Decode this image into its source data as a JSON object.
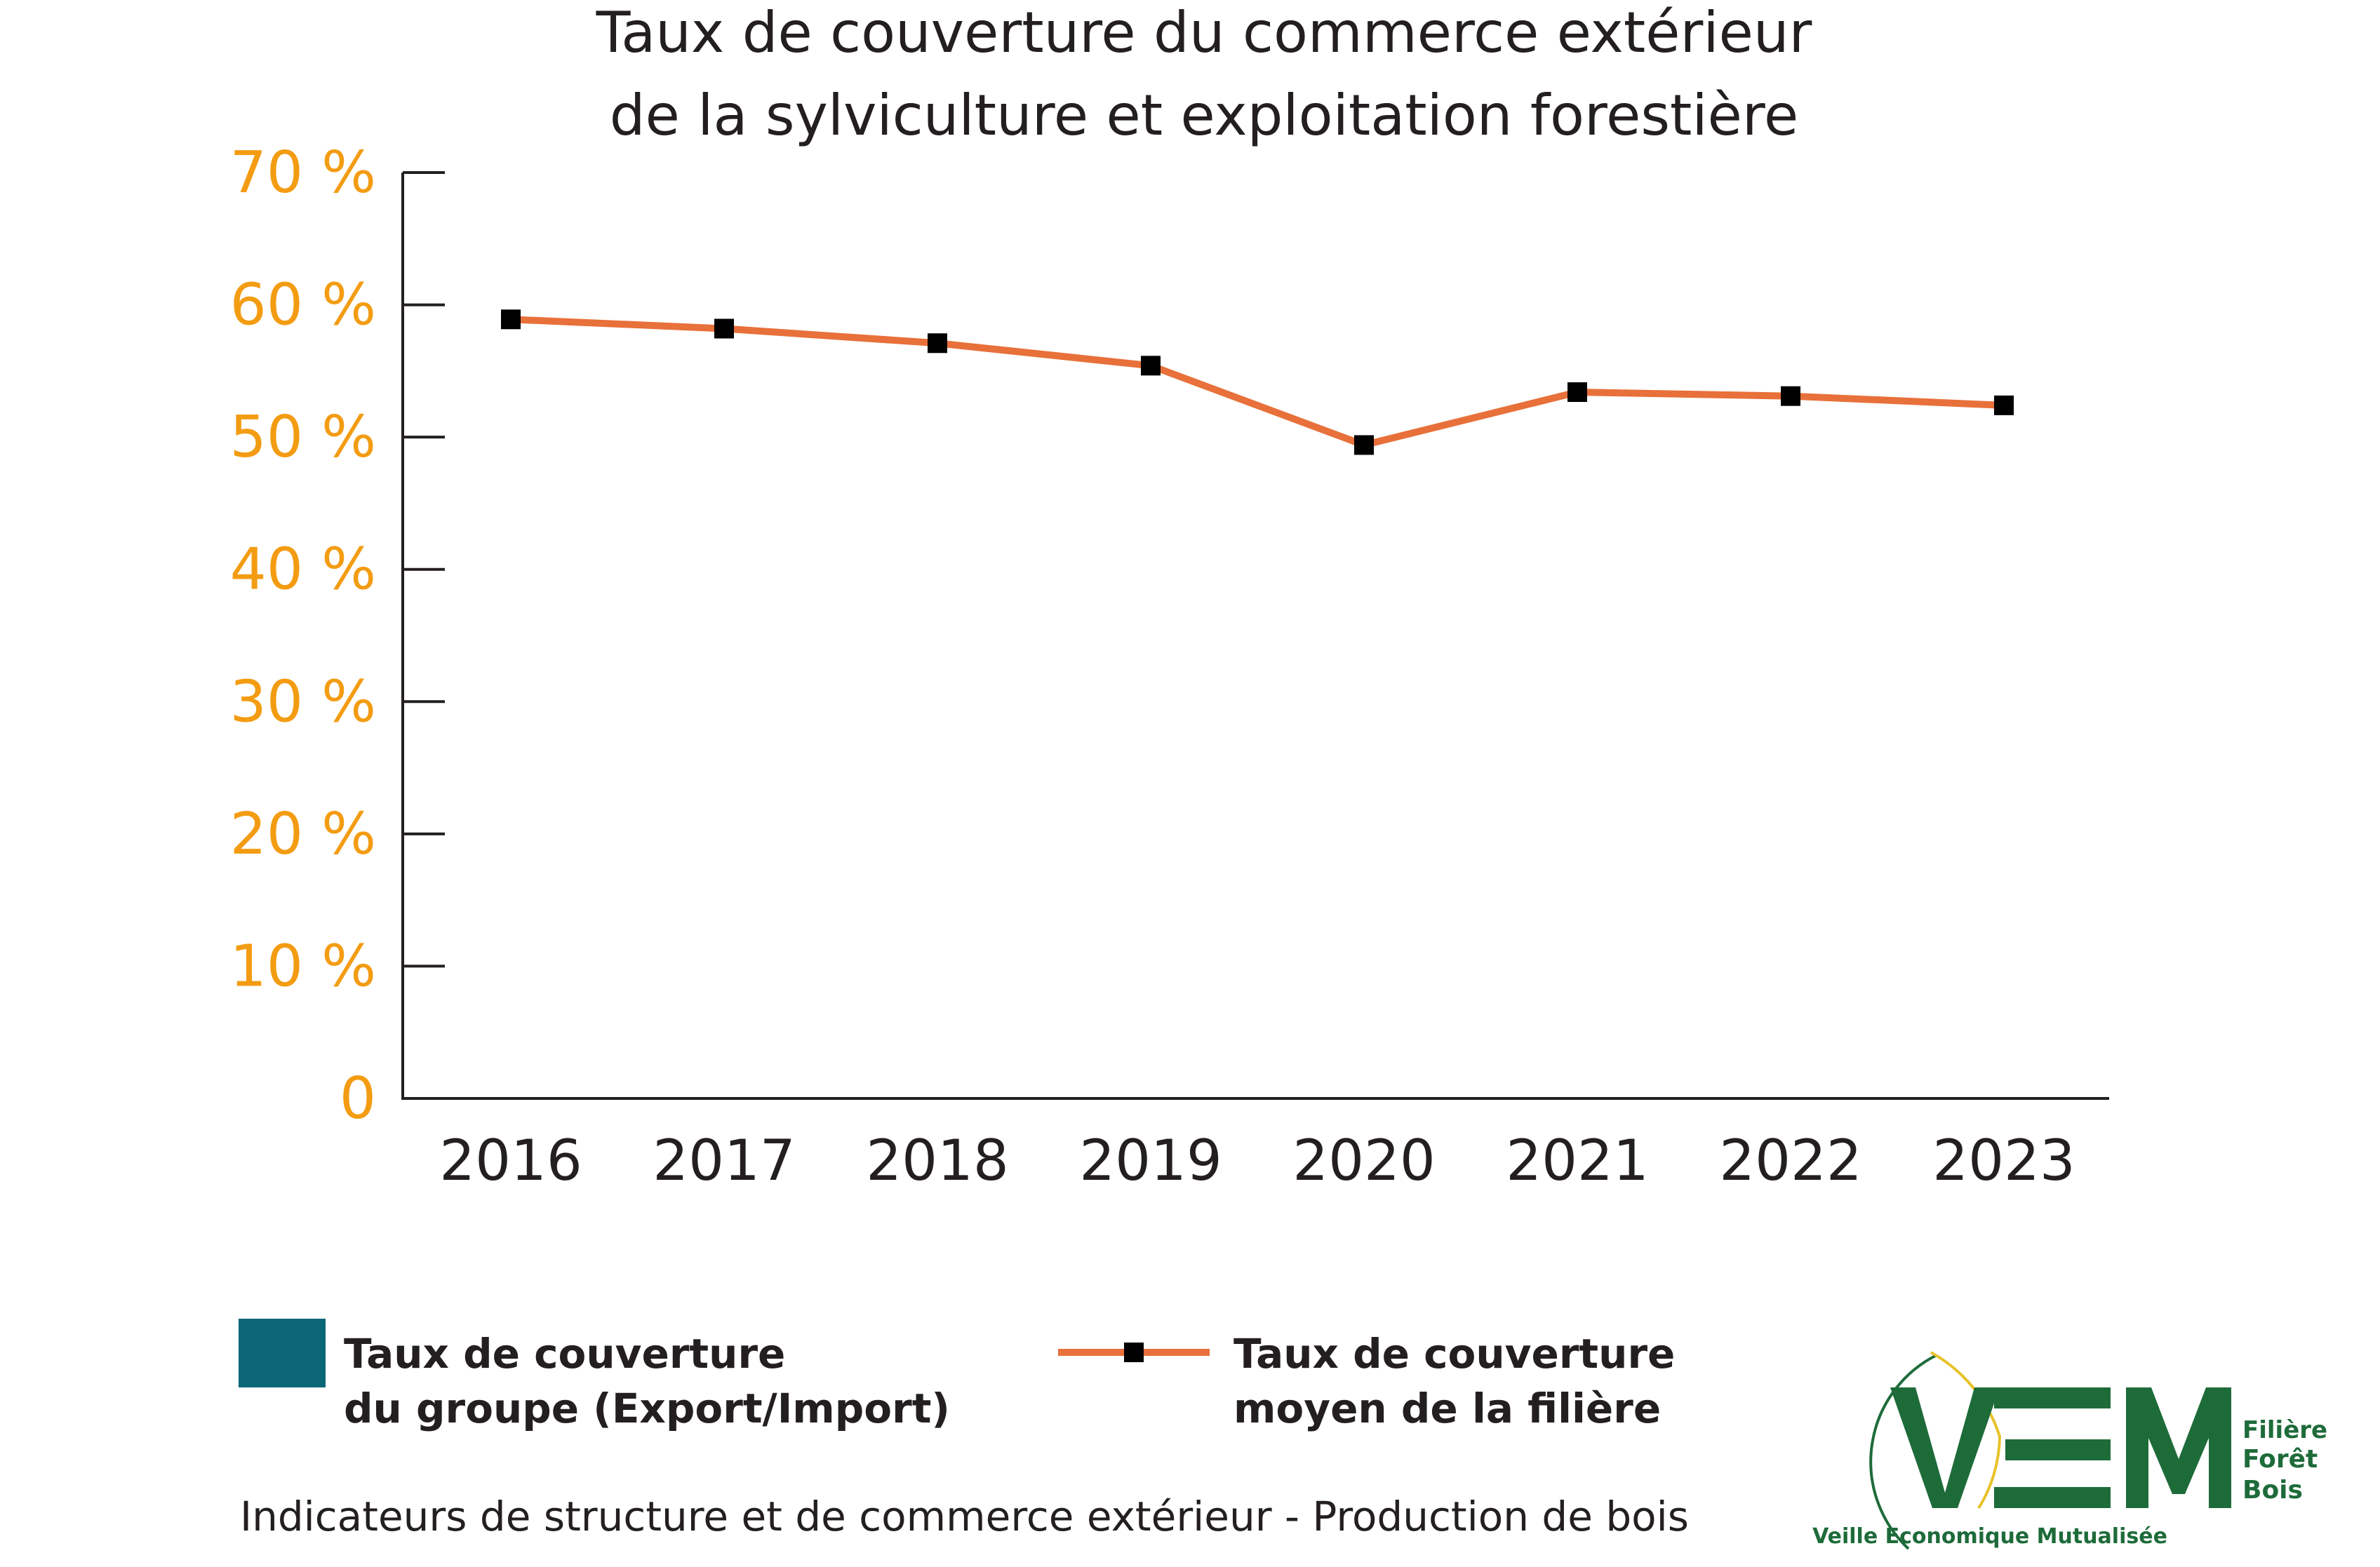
{
  "chart_data": {
    "type": "line",
    "title_lines": [
      "Taux de couverture du commerce extérieur",
      "de la sylviculture et exploitation forestière"
    ],
    "categories": [
      "2016",
      "2017",
      "2018",
      "2019",
      "2020",
      "2021",
      "2022",
      "2023"
    ],
    "series": [
      {
        "name": "Taux de couverture moyen de la filière",
        "values": [
          58.9,
          58.2,
          57.1,
          55.4,
          49.4,
          53.4,
          53.1,
          52.4
        ],
        "color": "#e8703a",
        "marker_color": "#000000"
      }
    ],
    "ylim": [
      0,
      70
    ],
    "yticks": [
      0,
      10,
      20,
      30,
      40,
      50,
      60,
      70
    ],
    "ytick_labels": [
      "0",
      "10 %",
      "20 %",
      "30 %",
      "40 %",
      "50 %",
      "60 %",
      "70 %"
    ],
    "ytick_color": "#f39c12",
    "grid": false,
    "legend_position": "bottom",
    "legend": [
      {
        "lines": [
          "Taux de couverture",
          "du groupe (Export/Import)"
        ],
        "swatch": "square",
        "color": "#0b6678"
      },
      {
        "lines": [
          "Taux de couverture",
          "moyen de la filière"
        ],
        "swatch": "line-marker",
        "color": "#e8703a"
      }
    ]
  },
  "caption": "Indicateurs de structure et de commerce extérieur - Production de bois",
  "logo": {
    "letters": [
      "V",
      "E",
      "M"
    ],
    "side_lines": [
      "Filière",
      "Forêt",
      "Bois"
    ],
    "tagline": "Veille Economique Mutualisée",
    "colors": {
      "green": "#1e6b3a",
      "yellow": "#e8c22a"
    }
  }
}
